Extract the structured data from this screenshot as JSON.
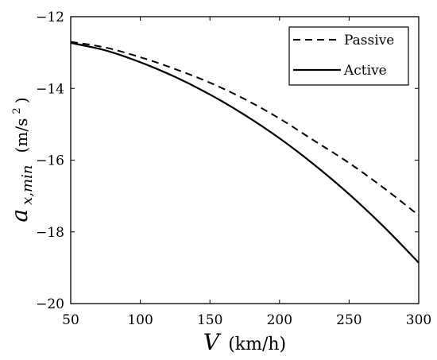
{
  "chart_data": {
    "type": "line",
    "xlabel_var": "V",
    "xlabel_unit": "(km/h)",
    "ylabel_var": "a",
    "ylabel_sub": "x,min",
    "ylabel_unit": "(m/s",
    "ylabel_unit_sup": "2",
    "ylabel_unit_close": ")",
    "xlim": [
      50,
      300
    ],
    "ylim": [
      -20,
      -12
    ],
    "xticks": [
      50,
      100,
      150,
      200,
      250,
      300
    ],
    "yticks": [
      -12,
      -14,
      -16,
      -18,
      -20
    ],
    "xtick_labels": [
      "50",
      "100",
      "150",
      "200",
      "250",
      "300"
    ],
    "ytick_labels": [
      "−12",
      "−14",
      "−16",
      "−18",
      "−20"
    ],
    "grid": false,
    "legend_position": "top-right",
    "series": [
      {
        "name": "Passive",
        "style": "dashed",
        "color": "#000000",
        "x": [
          50,
          75,
          100,
          125,
          150,
          175,
          200,
          225,
          250,
          275,
          300
        ],
        "y": [
          -12.7,
          -12.86,
          -13.13,
          -13.46,
          -13.84,
          -14.3,
          -14.84,
          -15.46,
          -16.08,
          -16.78,
          -17.54
        ]
      },
      {
        "name": "Active",
        "style": "solid",
        "color": "#000000",
        "x": [
          50,
          75,
          100,
          125,
          150,
          175,
          200,
          225,
          250,
          275,
          300
        ],
        "y": [
          -12.73,
          -12.94,
          -13.27,
          -13.68,
          -14.17,
          -14.74,
          -15.39,
          -16.13,
          -16.95,
          -17.86,
          -18.86
        ]
      }
    ]
  }
}
